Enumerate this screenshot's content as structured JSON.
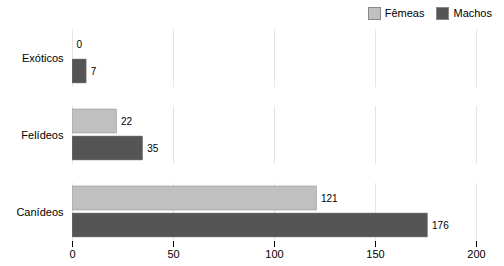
{
  "chart_data": {
    "type": "bar",
    "orientation": "horizontal",
    "categories": [
      "Canídeos",
      "Felídeos",
      "Exóticos"
    ],
    "series": [
      {
        "name": "Fêmeas",
        "color": "#c0c0c0",
        "values": [
          121,
          22,
          0
        ]
      },
      {
        "name": "Machos",
        "color": "#555555",
        "values": [
          176,
          35,
          7
        ]
      }
    ],
    "xlim": [
      0,
      200
    ],
    "xticks": [
      0,
      50,
      100,
      150,
      200
    ],
    "grid": true,
    "legend": "upper right",
    "data_labels": true
  }
}
